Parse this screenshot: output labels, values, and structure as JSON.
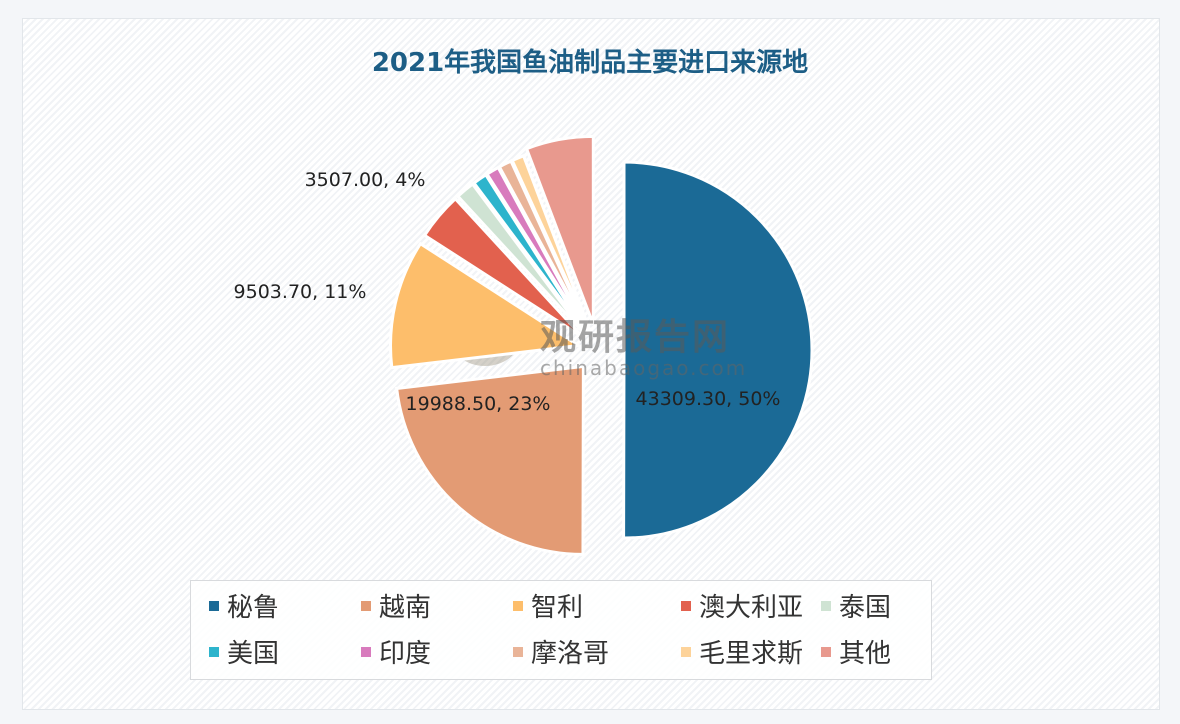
{
  "chart_data": {
    "type": "pie",
    "title": "2021年我国鱼油制品主要进口来源地",
    "legend_position": "bottom",
    "start_angle": "top",
    "direction": "clockwise",
    "exploded": true,
    "slices": [
      {
        "name": "秘鲁",
        "value": 43309.3,
        "percent": 50,
        "label": "43309.30, 50%",
        "color": "#1b6a96"
      },
      {
        "name": "越南",
        "value": 19988.5,
        "percent": 23,
        "label": "19988.50, 23%",
        "color": "#e39b74"
      },
      {
        "name": "智利",
        "value": 9503.7,
        "percent": 11,
        "label": "9503.70, 11%",
        "color": "#fdbe6b"
      },
      {
        "name": "澳大利亚",
        "value": 3507.0,
        "percent": 4,
        "label": "3507.00, 4%",
        "color": "#e2614e"
      },
      {
        "name": "泰国",
        "value": 1400,
        "color": "#cfe3d3"
      },
      {
        "name": "美国",
        "value": 1050,
        "color": "#2db4cc"
      },
      {
        "name": "印度",
        "value": 950,
        "color": "#d87bbd"
      },
      {
        "name": "摩洛哥",
        "value": 950,
        "color": "#e9b498"
      },
      {
        "name": "毛里求斯",
        "value": 900,
        "color": "#fdd39a"
      },
      {
        "name": "其他",
        "value": 5000,
        "color": "#e8998e"
      }
    ]
  },
  "watermark": {
    "brand": "观研报告网",
    "url": "chinabaogao.com"
  }
}
